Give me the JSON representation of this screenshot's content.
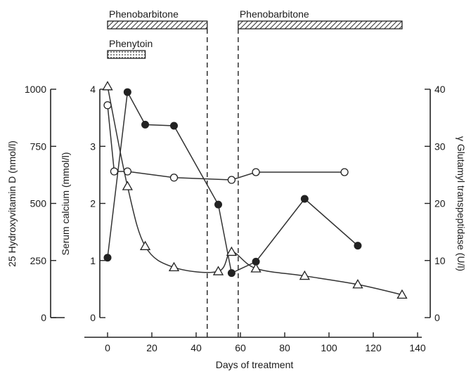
{
  "chart_data": {
    "type": "line",
    "xlabel": "Days of treatment",
    "xlim": [
      0,
      140
    ],
    "xticks": [
      0,
      20,
      40,
      60,
      80,
      100,
      120,
      140
    ],
    "axes": {
      "vitd": {
        "label": "25 Hydroxyvitamin D (nmol/l)",
        "ylim": [
          0,
          1000
        ],
        "ticks": [
          0,
          250,
          500,
          750,
          1000
        ]
      },
      "calcium": {
        "label": "Serum calcium (mmol/l)",
        "ylim": [
          0,
          4
        ],
        "ticks": [
          0,
          1,
          2,
          3,
          4
        ]
      },
      "ggt": {
        "label": "γ Glutamyl transpeptidase (U/l)",
        "ylim": [
          0,
          40
        ],
        "ticks": [
          0,
          10,
          20,
          30,
          40
        ]
      }
    },
    "treatment_bars": [
      {
        "label": "Phenobarbitone",
        "start": 0,
        "end": 45,
        "pattern": "hatch"
      },
      {
        "label": "Phenobarbitone",
        "start": 59,
        "end": 133,
        "pattern": "hatch"
      },
      {
        "label": "Phenytoin",
        "start": 0,
        "end": 17,
        "pattern": "dots"
      }
    ],
    "reference_lines_x": [
      45,
      59
    ],
    "series": [
      {
        "marker": "filled-circle",
        "axis": "calcium",
        "connect": "straight",
        "points": [
          [
            0,
            1.05
          ],
          [
            9,
            3.95
          ],
          [
            17,
            3.38
          ],
          [
            30,
            3.36
          ],
          [
            50,
            1.98
          ],
          [
            56,
            0.78
          ],
          [
            67,
            0.98
          ],
          [
            89,
            2.08
          ],
          [
            113,
            1.26
          ]
        ]
      },
      {
        "marker": "open-circle",
        "axis": "vitd",
        "connect": "straight",
        "points": [
          [
            0,
            930
          ],
          [
            3,
            640
          ],
          [
            9,
            640
          ],
          [
            30,
            613
          ],
          [
            56,
            603
          ],
          [
            67,
            637
          ],
          [
            107,
            637
          ]
        ]
      },
      {
        "marker": "open-triangle",
        "axis": "ggt",
        "connect": "smooth",
        "points": [
          [
            0,
            40.5
          ],
          [
            9,
            23
          ],
          [
            17,
            12.5
          ],
          [
            30,
            8.8
          ],
          [
            50,
            8.1
          ],
          [
            56,
            11.5
          ],
          [
            67,
            8.6
          ],
          [
            89,
            7.3
          ],
          [
            113,
            5.8
          ],
          [
            133,
            4
          ]
        ]
      }
    ]
  }
}
